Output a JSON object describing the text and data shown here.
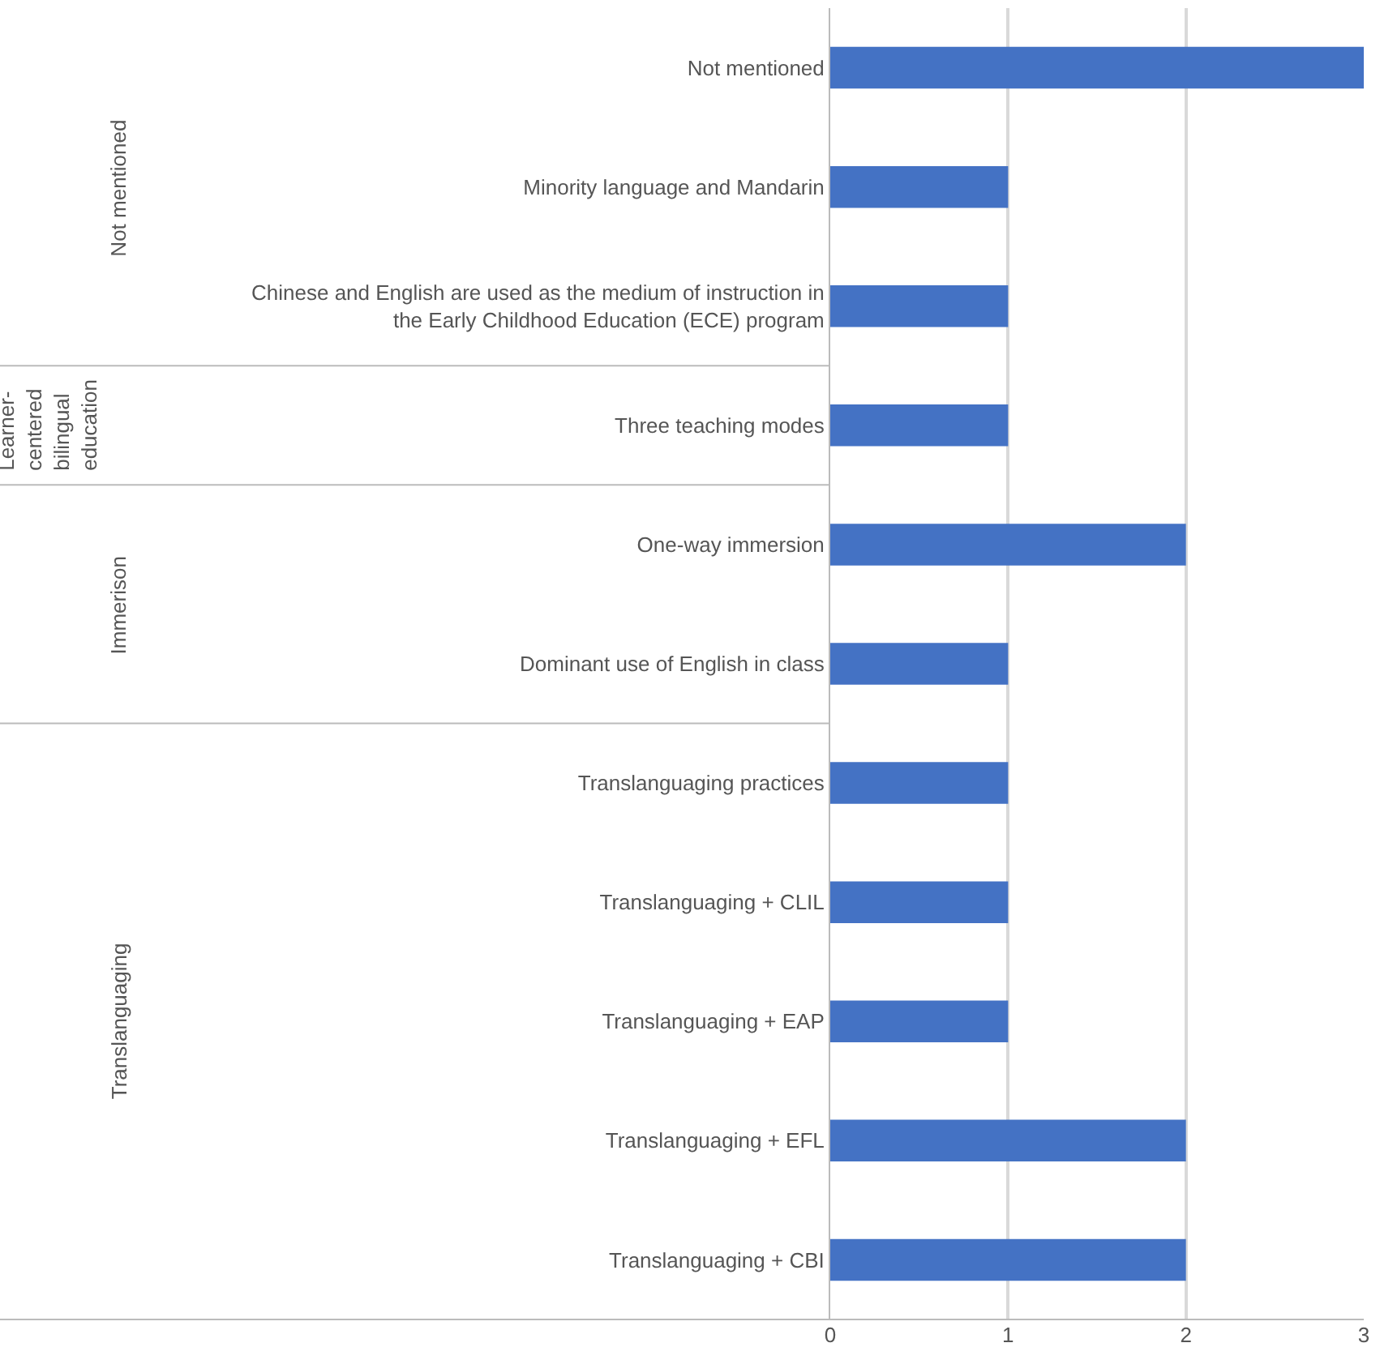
{
  "chart_data": {
    "type": "bar",
    "orientation": "horizontal",
    "categories": [
      "Not mentioned",
      "Minority language and Mandarin",
      "Chinese and English are used as the medium of instruction in the Early Childhood Education (ECE) program",
      "Three teaching modes",
      "One-way immersion",
      "Dominant use of English in class",
      "Translanguaging practices",
      "Translanguaging + CLIL",
      "Translanguaging + EAP",
      "Translanguaging + EFL",
      "Translanguaging + CBI"
    ],
    "values": [
      3,
      1,
      1,
      1,
      2,
      1,
      1,
      1,
      1,
      2,
      2
    ],
    "color": "#4472c4",
    "xlim": [
      0,
      3
    ],
    "xticks": [
      0,
      1,
      2,
      3
    ],
    "grid": "x",
    "annotations": [
      "Not mentioned",
      "Learner-centered bilingual education",
      "Immerison",
      "Translanguaging"
    ]
  }
}
